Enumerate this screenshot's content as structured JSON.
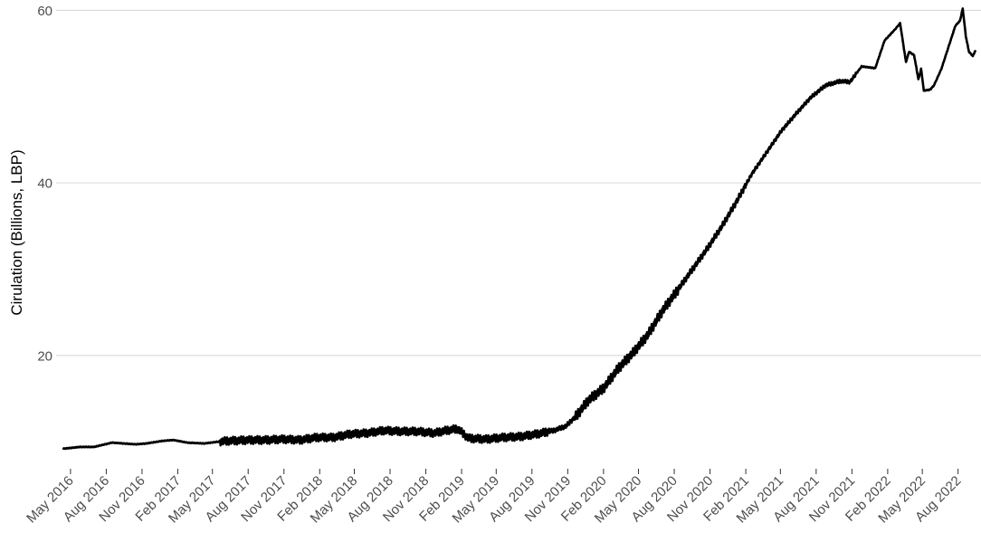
{
  "chart_data": {
    "type": "line",
    "title": "",
    "xlabel": "",
    "ylabel": "Cirulation (Billions, LBP)",
    "ylim": [
      7.5,
      61.2
    ],
    "xlim": [
      "2016-03-25",
      "2022-09-29"
    ],
    "grid": "horizontal major lines only",
    "legend": "none",
    "colors": {
      "line": "#000000",
      "grid": "#d9d9d9",
      "tick_text": "#4d4d4d"
    },
    "y_ticks": [
      {
        "value": 20,
        "label": "20"
      },
      {
        "value": 40,
        "label": "40"
      },
      {
        "value": 60,
        "label": "60"
      }
    ],
    "x_ticks": [
      {
        "date": "2016-05-01",
        "label": "May 2016"
      },
      {
        "date": "2016-08-01",
        "label": "Aug 2016"
      },
      {
        "date": "2016-11-01",
        "label": "Nov 2016"
      },
      {
        "date": "2017-02-01",
        "label": "Feb 2017"
      },
      {
        "date": "2017-05-01",
        "label": "May 2017"
      },
      {
        "date": "2017-08-01",
        "label": "Aug 2017"
      },
      {
        "date": "2017-11-01",
        "label": "Nov 2017"
      },
      {
        "date": "2018-02-01",
        "label": "Feb 2018"
      },
      {
        "date": "2018-05-01",
        "label": "May 2018"
      },
      {
        "date": "2018-08-01",
        "label": "Aug 2018"
      },
      {
        "date": "2018-11-01",
        "label": "Nov 2018"
      },
      {
        "date": "2019-02-01",
        "label": "Feb 2019"
      },
      {
        "date": "2019-05-01",
        "label": "May 2019"
      },
      {
        "date": "2019-08-01",
        "label": "Aug 2019"
      },
      {
        "date": "2019-11-01",
        "label": "Nov 2019"
      },
      {
        "date": "2020-02-01",
        "label": "Feb 2020"
      },
      {
        "date": "2020-05-01",
        "label": "May 2020"
      },
      {
        "date": "2020-08-01",
        "label": "Aug 2020"
      },
      {
        "date": "2020-11-01",
        "label": "Nov 2020"
      },
      {
        "date": "2021-02-01",
        "label": "Feb 2021"
      },
      {
        "date": "2021-05-01",
        "label": "May 2021"
      },
      {
        "date": "2021-08-01",
        "label": "Aug 2021"
      },
      {
        "date": "2021-11-01",
        "label": "Nov 2021"
      },
      {
        "date": "2022-02-01",
        "label": "Feb 2022"
      },
      {
        "date": "2022-05-01",
        "label": "May 2022"
      },
      {
        "date": "2022-08-01",
        "label": "Aug 2022"
      }
    ],
    "series": [
      {
        "points": [
          [
            "2016-04-13",
            9.2
          ],
          [
            "2016-05-26",
            9.4
          ],
          [
            "2016-07-01",
            9.4
          ],
          [
            "2016-08-16",
            9.9
          ],
          [
            "2016-10-15",
            9.7
          ],
          [
            "2016-11-12",
            9.8
          ],
          [
            "2016-12-24",
            10.1
          ],
          [
            "2017-01-21",
            10.2
          ],
          [
            "2017-02-25",
            9.9
          ],
          [
            "2017-04-10",
            9.8
          ],
          [
            "2017-05-15",
            10.0
          ],
          [
            "2017-06-12",
            10.1
          ],
          [
            "2017-08-05",
            10.2
          ],
          [
            "2017-09-17",
            10.2
          ],
          [
            "2017-10-30",
            10.3
          ],
          [
            "2017-12-12",
            10.2
          ],
          [
            "2018-01-24",
            10.5
          ],
          [
            "2018-03-08",
            10.5
          ],
          [
            "2018-04-21",
            10.9
          ],
          [
            "2018-06-03",
            11.0
          ],
          [
            "2018-07-16",
            11.3
          ],
          [
            "2018-08-28",
            11.2
          ],
          [
            "2018-10-10",
            11.2
          ],
          [
            "2018-11-22",
            11.0
          ],
          [
            "2018-12-23",
            11.3
          ],
          [
            "2019-01-22",
            11.5
          ],
          [
            "2019-02-19",
            10.4
          ],
          [
            "2019-04-07",
            10.3
          ],
          [
            "2019-05-20",
            10.5
          ],
          [
            "2019-07-02",
            10.6
          ],
          [
            "2019-08-14",
            10.9
          ],
          [
            "2019-09-26",
            11.3
          ],
          [
            "2019-10-27",
            11.8
          ],
          [
            "2019-11-23",
            13.0
          ],
          [
            "2019-12-24",
            14.8
          ],
          [
            "2020-02-01",
            16.2
          ],
          [
            "2020-03-10",
            18.5
          ],
          [
            "2020-04-17",
            20.3
          ],
          [
            "2020-05-25",
            22.4
          ],
          [
            "2020-07-02",
            25.2
          ],
          [
            "2020-08-10",
            27.6
          ],
          [
            "2020-09-17",
            30.0
          ],
          [
            "2020-10-25",
            32.4
          ],
          [
            "2020-12-02",
            35.0
          ],
          [
            "2021-01-09",
            37.9
          ],
          [
            "2021-02-16",
            41.0
          ],
          [
            "2021-03-26",
            43.5
          ],
          [
            "2021-05-03",
            46.0
          ],
          [
            "2021-06-10",
            48.0
          ],
          [
            "2021-07-18",
            49.9
          ],
          [
            "2021-08-25",
            51.3
          ],
          [
            "2021-10-02",
            51.8
          ],
          [
            "2021-10-27",
            51.7
          ],
          [
            "2021-11-26",
            53.5
          ],
          [
            "2021-12-31",
            53.3
          ],
          [
            "2022-01-24",
            56.5
          ],
          [
            "2022-02-20",
            57.8
          ],
          [
            "2022-03-05",
            58.5
          ],
          [
            "2022-03-20",
            54.0
          ],
          [
            "2022-03-28",
            55.2
          ],
          [
            "2022-04-10",
            54.8
          ],
          [
            "2022-04-21",
            52.0
          ],
          [
            "2022-04-28",
            53.2
          ],
          [
            "2022-05-05",
            50.7
          ],
          [
            "2022-05-21",
            50.8
          ],
          [
            "2022-05-31",
            51.3
          ],
          [
            "2022-06-19",
            53.2
          ],
          [
            "2022-07-07",
            55.7
          ],
          [
            "2022-07-25",
            58.2
          ],
          [
            "2022-08-06",
            58.8
          ],
          [
            "2022-08-13",
            60.2
          ],
          [
            "2022-08-21",
            57.0
          ],
          [
            "2022-08-29",
            55.2
          ],
          [
            "2022-09-08",
            54.7
          ],
          [
            "2022-09-14",
            55.3
          ]
        ]
      }
    ]
  }
}
